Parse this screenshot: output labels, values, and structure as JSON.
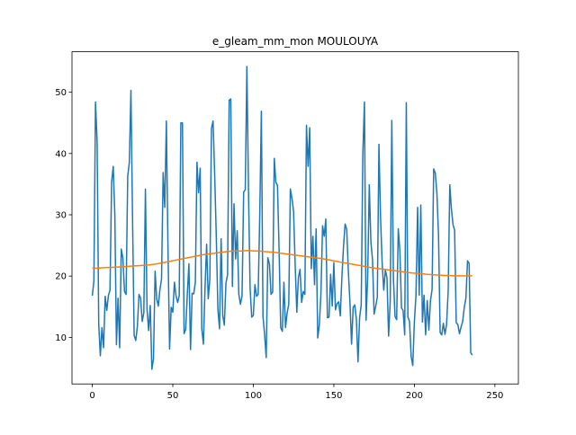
{
  "chart_data": {
    "type": "line",
    "title": "e_gleam_mm_mon MOULOUYA",
    "xlabel": "",
    "ylabel": "",
    "xlim": [
      -12.6,
      264.6
    ],
    "ylim": [
      2.4,
      56.6
    ],
    "x_ticks": [
      0,
      50,
      100,
      150,
      200,
      250
    ],
    "y_ticks": [
      10,
      20,
      30,
      40,
      50
    ],
    "grid": false,
    "legend": "none",
    "series": [
      {
        "color": "#1f77b4",
        "values": [
          16.8,
          19.2,
          48.4,
          42.0,
          12.1,
          7.0,
          11.6,
          8.3,
          16.7,
          14.4,
          16.8,
          17.7,
          35.3,
          37.9,
          30.0,
          8.8,
          16.4,
          8.3,
          24.4,
          22.9,
          17.5,
          17.0,
          36.3,
          38.5,
          50.3,
          29.4,
          10.3,
          9.5,
          11.8,
          17.0,
          16.4,
          12.6,
          14.0,
          34.2,
          14.6,
          11.1,
          15.2,
          4.8,
          6.5,
          20.8,
          16.3,
          15.1,
          17.8,
          19.5,
          36.9,
          31.2,
          45.3,
          24.6,
          8.1,
          14.9,
          14.1,
          19.0,
          16.8,
          15.7,
          16.8,
          45.0,
          45.0,
          10.6,
          11.3,
          17.0,
          22.0,
          8.0,
          17.2,
          17.1,
          19.0,
          38.6,
          33.6,
          37.6,
          11.4,
          8.9,
          18.0,
          25.2,
          16.3,
          19.5,
          44.1,
          45.3,
          36.6,
          26.5,
          14.6,
          11.4,
          26.1,
          13.6,
          12.0,
          18.9,
          20.2,
          48.7,
          48.9,
          18.3,
          31.8,
          22.8,
          27.4,
          17.0,
          15.4,
          16.8,
          33.7,
          34.1,
          54.2,
          34.0,
          18.0,
          13.3,
          13.6,
          18.6,
          16.7,
          17.0,
          30.1,
          46.9,
          13.4,
          10.5,
          6.7,
          23.0,
          22.0,
          17.0,
          17.4,
          39.2,
          35.3,
          34.8,
          24.2,
          11.6,
          11.0,
          19.0,
          11.6,
          14.0,
          15.4,
          34.2,
          32.7,
          30.5,
          21.7,
          14.1,
          19.8,
          21.1,
          15.7,
          17.5,
          17.0,
          44.6,
          37.9,
          44.2,
          21.2,
          26.5,
          18.6,
          27.7,
          9.9,
          12.1,
          17.3,
          28.2,
          26.5,
          29.3,
          13.2,
          13.3,
          20.3,
          15.1,
          22.2,
          14.5,
          15.5,
          15.8,
          13.5,
          19.8,
          24.8,
          28.5,
          27.6,
          20.8,
          15.7,
          8.9,
          14.9,
          15.3,
          12.9,
          6.0,
          13.2,
          15.3,
          39.9,
          48.4,
          12.8,
          19.8,
          34.9,
          25.6,
          22.7,
          13.8,
          15.1,
          16.6,
          41.5,
          29.6,
          22.1,
          17.7,
          21.0,
          19.7,
          10.2,
          15.9,
          45.4,
          19.6,
          13.4,
          12.9,
          27.7,
          24.2,
          14.8,
          14.4,
          10.4,
          48.3,
          13.3,
          12.6,
          6.9,
          5.4,
          12.5,
          16.9,
          31.2,
          16.9,
          31.6,
          12.5,
          16.9,
          10.4,
          16.0,
          11.2,
          16.0,
          17.8,
          37.5,
          36.8,
          33.5,
          26.6,
          10.8,
          10.4,
          12.3,
          10.5,
          12.1,
          17.6,
          34.9,
          31.0,
          28.4,
          27.5,
          12.4,
          12.1,
          10.6,
          11.7,
          12.6,
          14.9,
          16.4,
          22.5,
          22.1,
          7.5,
          7.1
        ]
      },
      {
        "color": "#ff7f0e",
        "values": [
          21.3,
          21.3,
          21.35,
          21.4,
          21.4,
          21.45,
          21.5,
          21.55,
          21.6,
          21.65,
          21.7,
          21.75,
          21.8,
          21.9,
          22.0,
          22.15,
          22.3,
          22.45,
          22.6,
          22.75,
          22.9,
          23.05,
          23.2,
          23.35,
          23.5,
          23.6,
          23.7,
          23.8,
          23.9,
          24.0,
          24.05,
          24.1,
          24.1,
          24.15,
          24.15,
          24.1,
          24.1,
          24.0,
          23.95,
          23.9,
          23.8,
          23.7,
          23.6,
          23.5,
          23.4,
          23.3,
          23.2,
          23.1,
          23.0,
          22.9,
          22.8,
          22.65,
          22.5,
          22.35,
          22.2,
          22.1,
          21.95,
          21.8,
          21.7,
          21.55,
          21.4,
          21.3,
          21.2,
          21.1,
          21.0,
          20.9,
          20.8,
          20.7,
          20.6,
          20.5,
          20.45,
          20.4,
          20.3,
          20.25,
          20.2,
          20.15,
          20.1,
          20.1,
          20.05,
          20.05,
          20.05,
          20.05,
          20.05
        ]
      }
    ]
  }
}
